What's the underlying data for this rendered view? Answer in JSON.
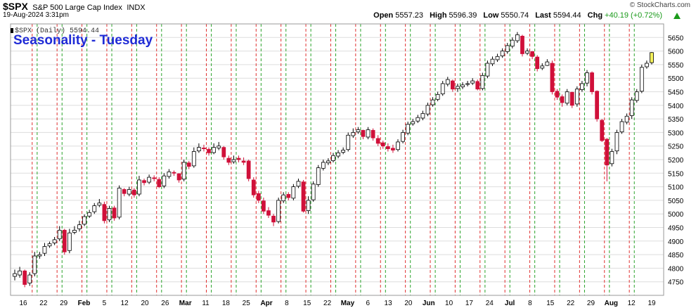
{
  "header": {
    "symbol": "$SPX",
    "description": "S&P 500 Large Cap Index",
    "exchange": "INDX",
    "datetime": "19-Aug-2024 3:31pm",
    "copyright": "© StockCharts.com",
    "open_label": "Open",
    "open": "5557.23",
    "high_label": "High",
    "high": "5596.39",
    "low_label": "Low",
    "low": "5550.74",
    "last_label": "Last",
    "last": "5594.44",
    "chg_label": "Chg",
    "chg": "+40.19 (+0.72%)"
  },
  "legend": {
    "series_label": "$SPX (Daily) 5594.44"
  },
  "annotation": {
    "text": "Seasonality - Tuesday",
    "color": "#1f2bd6"
  },
  "colors": {
    "up": "#000000",
    "down": "#d0103a",
    "red_line": "#e03030",
    "green_line": "#2aa32a",
    "last_candle": "#f2ef5a",
    "grid": "#dddddd"
  },
  "chart_data": {
    "type": "candlestick",
    "title": "Seasonality - Tuesday",
    "ylim": [
      4700,
      5700
    ],
    "y_ticks": [
      4750,
      4800,
      4850,
      4900,
      4950,
      5000,
      5050,
      5100,
      5150,
      5200,
      5250,
      5300,
      5350,
      5400,
      5450,
      5500,
      5550,
      5600,
      5650
    ],
    "x_tick_labels": [
      "16",
      "22",
      "29",
      "Feb",
      "5",
      "12",
      "20",
      "26",
      "Mar",
      "11",
      "18",
      "25",
      "Apr",
      "8",
      "15",
      "22",
      "May",
      "6",
      "13",
      "20",
      "Jun",
      "10",
      "17",
      "24",
      "Jul",
      "8",
      "15",
      "22",
      "29",
      "Aug",
      "12",
      "19"
    ],
    "month_labels": [
      "Feb",
      "Mar",
      "Apr",
      "May",
      "Jun",
      "Jul",
      "Aug"
    ],
    "vertical_lines": "red dashed line at each Monday, green dashed line at each Tuesday",
    "closes": [
      4780,
      4790,
      4740,
      4775,
      4845,
      4850,
      4880,
      4890,
      4905,
      4940,
      4860,
      4930,
      4940,
      4960,
      4990,
      5005,
      5030,
      5040,
      4975,
      5020,
      4985,
      5095,
      5075,
      5090,
      5070,
      5125,
      5115,
      5135,
      5130,
      5100,
      5140,
      5155,
      5150,
      5125,
      5190,
      5175,
      5230,
      5245,
      5240,
      5225,
      5245,
      5250,
      5210,
      5190,
      5200,
      5200,
      5190,
      5130,
      5070,
      5050,
      5010,
      4995,
      4970,
      5050,
      5070,
      5060,
      5100,
      5120,
      5010,
      5050,
      5110,
      5170,
      5190,
      5195,
      5215,
      5225,
      5235,
      5290,
      5300,
      5310,
      5285,
      5310,
      5280,
      5260,
      5250,
      5240,
      5235,
      5265,
      5300,
      5330,
      5340,
      5355,
      5370,
      5400,
      5420,
      5440,
      5480,
      5495,
      5460,
      5470,
      5475,
      5480,
      5490,
      5460,
      5510,
      5555,
      5570,
      5580,
      5600,
      5620,
      5640,
      5660,
      5590,
      5600,
      5580,
      5535,
      5545,
      5560,
      5450,
      5430,
      5410,
      5450,
      5400,
      5460,
      5480,
      5520,
      5450,
      5350,
      5270,
      5180,
      5230,
      5300,
      5340,
      5360,
      5420,
      5450,
      5540,
      5555,
      5594.44
    ],
    "opens": [
      4770,
      4775,
      4790,
      4745,
      4780,
      4845,
      4855,
      4882,
      4893,
      4908,
      4940,
      4865,
      4932,
      4945,
      4962,
      4992,
      5008,
      5032,
      5035,
      4978,
      5022,
      4988,
      5090,
      5073,
      5088,
      5073,
      5123,
      5117,
      5133,
      5127,
      5103,
      5138,
      5153,
      5148,
      5128,
      5188,
      5177,
      5232,
      5243,
      5238,
      5226,
      5243,
      5245,
      5205,
      5192,
      5205,
      5195,
      5195,
      5125,
      5075,
      5048,
      5012,
      4992,
      4972,
      5048,
      5072,
      5058,
      5102,
      5118,
      5012,
      5052,
      5108,
      5168,
      5188,
      5196,
      5213,
      5227,
      5237,
      5288,
      5302,
      5308,
      5283,
      5308,
      5278,
      5262,
      5248,
      5242,
      5237,
      5267,
      5298,
      5332,
      5342,
      5353,
      5368,
      5402,
      5422,
      5442,
      5478,
      5490,
      5462,
      5468,
      5477,
      5482,
      5488,
      5462,
      5508,
      5553,
      5568,
      5582,
      5598,
      5618,
      5638,
      5655,
      5592,
      5598,
      5578,
      5537,
      5547,
      5555,
      5452,
      5432,
      5408,
      5448,
      5405,
      5458,
      5482,
      5520,
      5452,
      5345,
      5275,
      5185,
      5232,
      5302,
      5338,
      5362,
      5418,
      5452,
      5542,
      5557.23
    ],
    "highs": [
      4795,
      4805,
      4795,
      4785,
      4860,
      4860,
      4893,
      4898,
      4915,
      4955,
      4945,
      4945,
      4955,
      4975,
      4998,
      5015,
      5040,
      5055,
      5045,
      5030,
      5030,
      5105,
      5095,
      5100,
      5095,
      5140,
      5130,
      5145,
      5142,
      5135,
      5150,
      5165,
      5160,
      5150,
      5200,
      5195,
      5245,
      5260,
      5255,
      5245,
      5260,
      5265,
      5250,
      5215,
      5215,
      5215,
      5208,
      5200,
      5135,
      5085,
      5060,
      5025,
      5000,
      5060,
      5080,
      5080,
      5110,
      5130,
      5125,
      5065,
      5120,
      5180,
      5200,
      5205,
      5225,
      5235,
      5245,
      5300,
      5315,
      5320,
      5310,
      5320,
      5315,
      5290,
      5270,
      5260,
      5255,
      5275,
      5310,
      5340,
      5350,
      5365,
      5380,
      5410,
      5430,
      5450,
      5490,
      5505,
      5495,
      5480,
      5485,
      5490,
      5500,
      5495,
      5520,
      5565,
      5580,
      5590,
      5610,
      5630,
      5650,
      5670,
      5660,
      5610,
      5600,
      5585,
      5555,
      5570,
      5565,
      5460,
      5440,
      5460,
      5450,
      5470,
      5490,
      5530,
      5525,
      5455,
      5350,
      5280,
      5240,
      5310,
      5350,
      5370,
      5430,
      5460,
      5550,
      5565,
      5596.39
    ],
    "lows": [
      4755,
      4765,
      4730,
      4735,
      4770,
      4835,
      4845,
      4875,
      4885,
      4900,
      4850,
      4855,
      4925,
      4935,
      4955,
      4985,
      5000,
      5025,
      4965,
      4970,
      4975,
      4980,
      5065,
      5065,
      5060,
      5065,
      5105,
      5110,
      5120,
      5095,
      5095,
      5130,
      5140,
      5115,
      5120,
      5165,
      5170,
      5225,
      5230,
      5215,
      5220,
      5235,
      5200,
      5180,
      5185,
      5190,
      5180,
      5120,
      5060,
      5040,
      5000,
      4985,
      4955,
      4965,
      5040,
      5050,
      5050,
      5095,
      5005,
      5000,
      5045,
      5100,
      5160,
      5180,
      5190,
      5205,
      5220,
      5230,
      5280,
      5295,
      5275,
      5275,
      5270,
      5250,
      5240,
      5230,
      5225,
      5230,
      5260,
      5290,
      5325,
      5335,
      5345,
      5360,
      5395,
      5415,
      5435,
      5470,
      5450,
      5450,
      5460,
      5470,
      5475,
      5455,
      5455,
      5500,
      5545,
      5560,
      5575,
      5590,
      5610,
      5630,
      5580,
      5585,
      5570,
      5525,
      5530,
      5545,
      5440,
      5420,
      5395,
      5400,
      5390,
      5395,
      5450,
      5470,
      5440,
      5340,
      5265,
      5120,
      5175,
      5220,
      5295,
      5330,
      5350,
      5410,
      5445,
      5535,
      5550.74
    ]
  }
}
